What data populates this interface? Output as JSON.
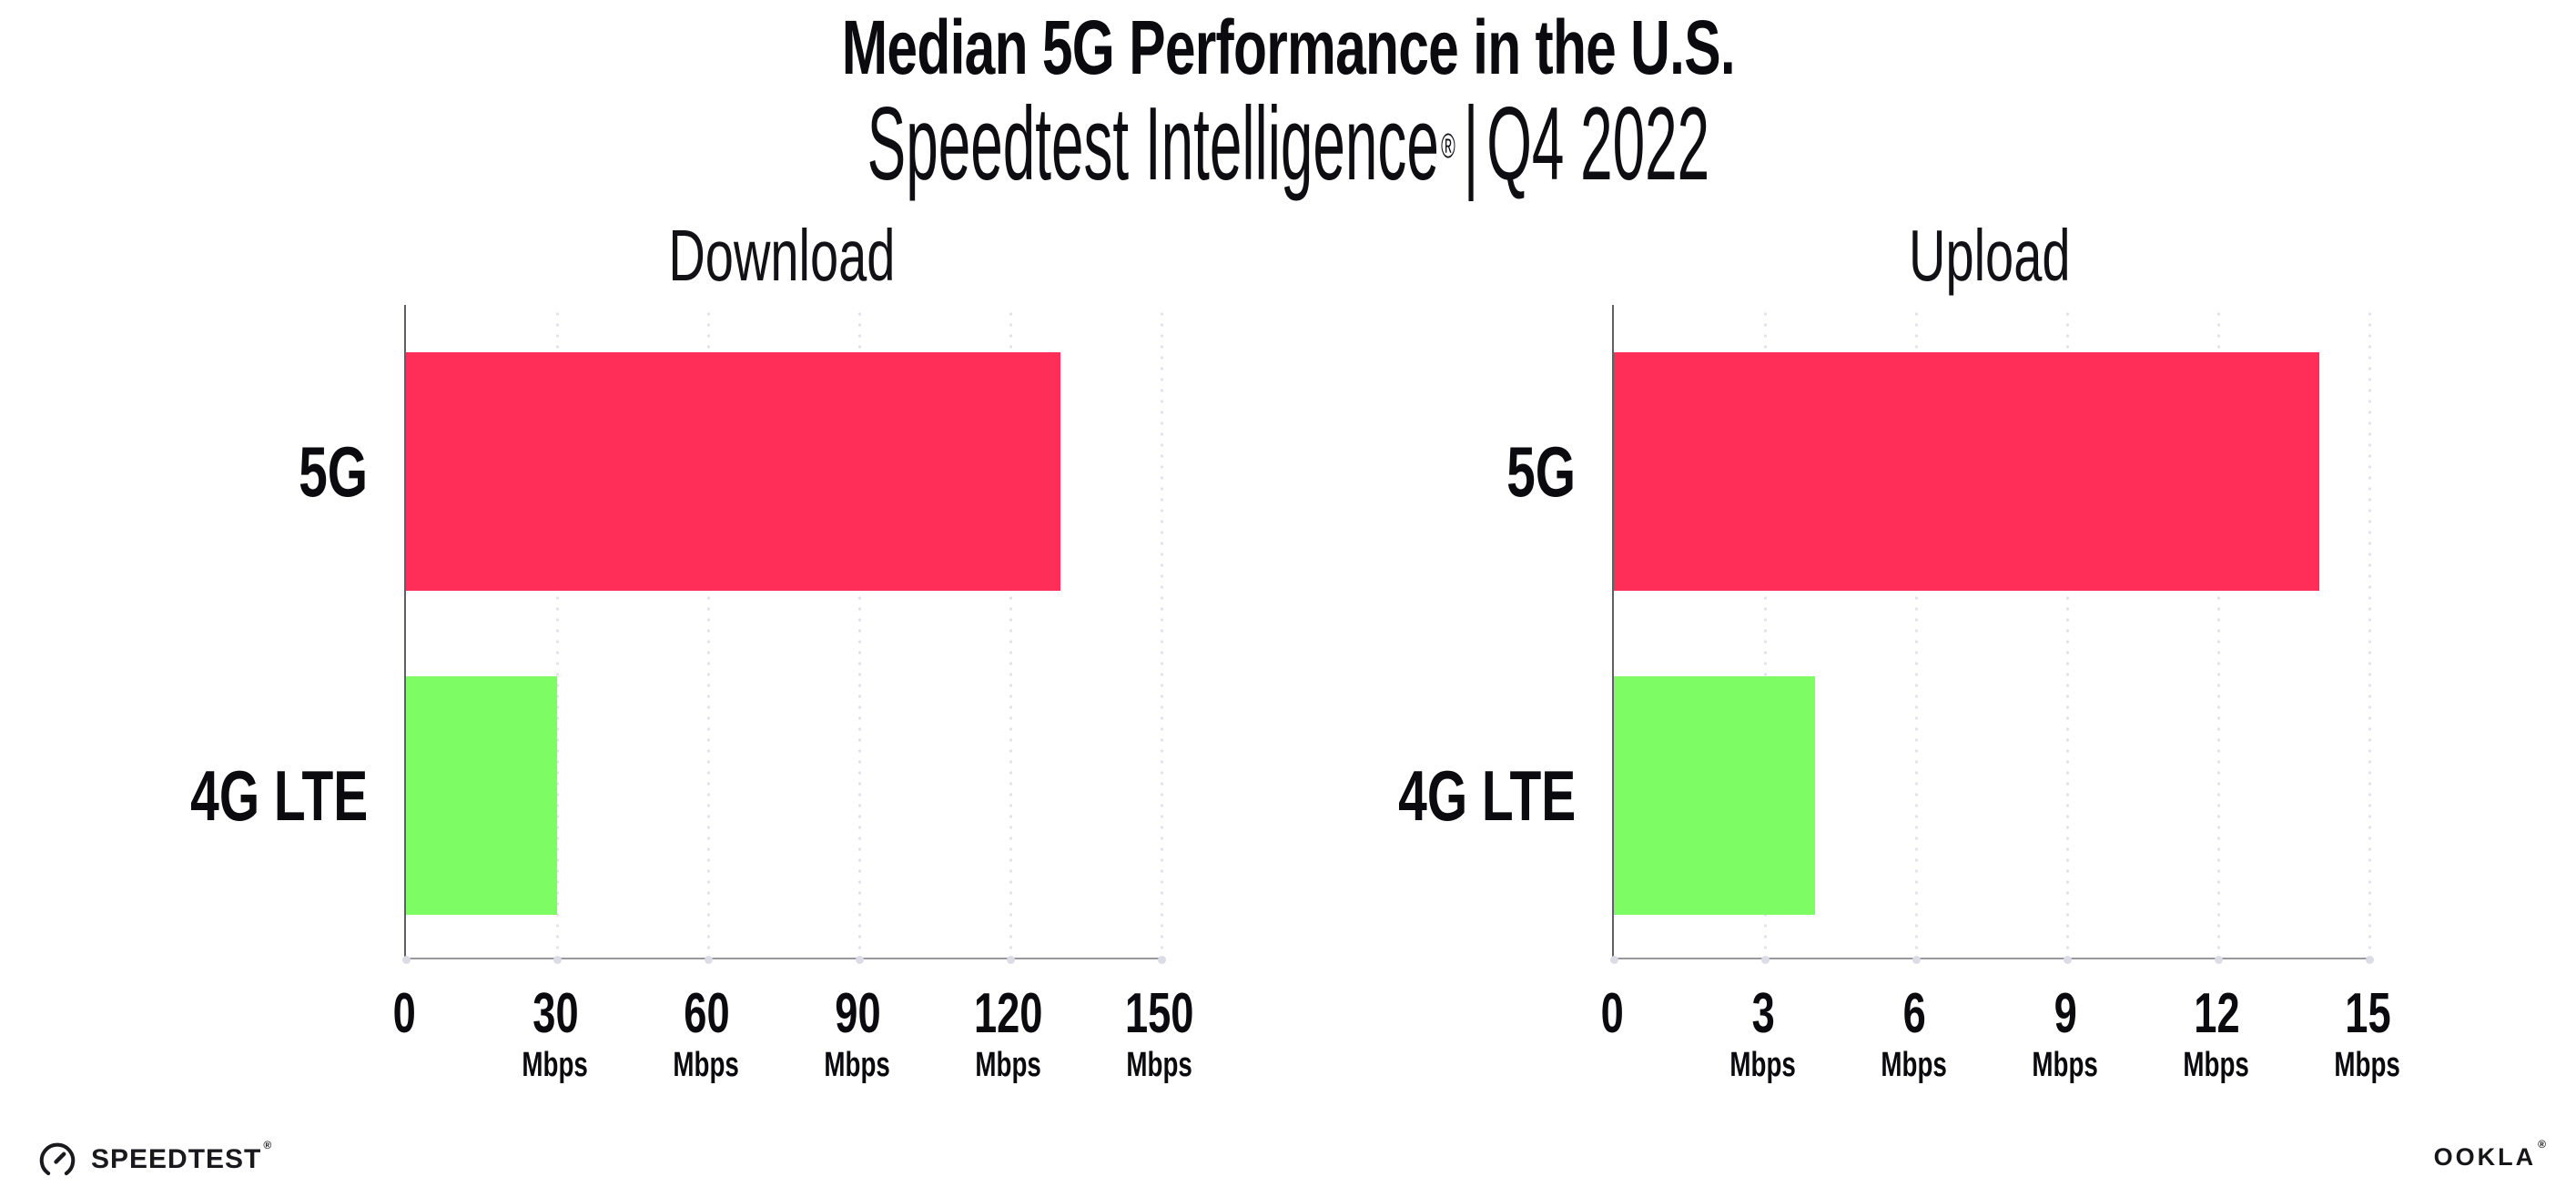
{
  "header": {
    "title": "Median 5G Performance in the U.S.",
    "subtitle": {
      "brand": "Speedtest Intelligence",
      "registered_mark": "®",
      "separator": "|",
      "period": "Q4 2022"
    }
  },
  "chart_data": [
    {
      "type": "bar",
      "orientation": "horizontal",
      "title": "Download",
      "unit": "Mbps",
      "categories": [
        "5G",
        "4G LTE"
      ],
      "values": [
        130,
        30
      ],
      "xlim": [
        0,
        150
      ],
      "ticks": [
        0,
        30,
        60,
        90,
        120,
        150
      ],
      "bar_colors": [
        "#ff2e59",
        "#7efc64"
      ],
      "grid": "dotted-vertical",
      "legend": "none"
    },
    {
      "type": "bar",
      "orientation": "horizontal",
      "title": "Upload",
      "unit": "Mbps",
      "categories": [
        "5G",
        "4G LTE"
      ],
      "values": [
        14,
        4
      ],
      "xlim": [
        0,
        15
      ],
      "ticks": [
        0,
        3,
        6,
        9,
        12,
        15
      ],
      "bar_colors": [
        "#ff2e59",
        "#7efc64"
      ],
      "grid": "dotted-vertical",
      "legend": "none"
    }
  ],
  "footer": {
    "speedtest_wordmark": "SPEEDTEST",
    "speedtest_trademark": "®",
    "ookla_wordmark": "OOKLA",
    "ookla_trademark": "®"
  },
  "colors": {
    "bar_5g": "#ff2e59",
    "bar_4g_lte": "#7efc64",
    "y_axis": "#5f5f66",
    "x_axis": "#98989e",
    "gridline_dots": "#e2e2ee",
    "tick_dots": "#dcdce6",
    "text": "#0b0b0f",
    "background": "#ffffff"
  }
}
